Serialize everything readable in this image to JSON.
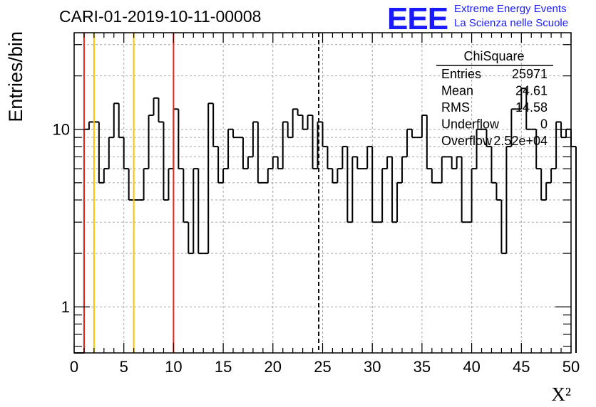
{
  "title": "CARI-01-2019-10-11-00008",
  "logo": {
    "mark": "EEE",
    "line1": "Extreme Energy Events",
    "line2": "La Scienza nelle Scuole",
    "color": "#1a1aff"
  },
  "stats": {
    "name": "ChiSquare",
    "rows": [
      {
        "label": "Entries",
        "value": "25971"
      },
      {
        "label": "Mean",
        "value": "24.61"
      },
      {
        "label": "RMS",
        "value": "14.58"
      },
      {
        "label": "Underflow",
        "value": "0"
      },
      {
        "label": "Overflow",
        "value": "2.52e+04"
      }
    ]
  },
  "chart_data": {
    "type": "histogram",
    "scale_y": "log",
    "xlabel": "X²",
    "ylabel": "Entries/bin",
    "xlim": [
      0,
      50
    ],
    "ylim": [
      0.55,
      35
    ],
    "x_ticks": [
      0,
      5,
      10,
      15,
      20,
      25,
      30,
      35,
      40,
      45,
      50
    ],
    "x_tick_labels": [
      "0",
      "5",
      "10",
      "15",
      "20",
      "25",
      "30",
      "35",
      "40",
      "45",
      "50"
    ],
    "y_tick_labels": [
      {
        "value": 1,
        "label": "1"
      },
      {
        "value": 10,
        "label": "10"
      }
    ],
    "grid": true,
    "bin_width": 0.5,
    "bins_x_start": 0,
    "counts": [
      0,
      0,
      10,
      11,
      11,
      5,
      6,
      9,
      14,
      9,
      6,
      4,
      4,
      4,
      6,
      12,
      15,
      11,
      4,
      6,
      13,
      6,
      3,
      2,
      6,
      2,
      2,
      14,
      8,
      5,
      6,
      10,
      9,
      9,
      6,
      7,
      11,
      5,
      5,
      6,
      7,
      6,
      11,
      9,
      13,
      12,
      10,
      12,
      6,
      11,
      8,
      6,
      5,
      6,
      8,
      3,
      7,
      6,
      6,
      8,
      3,
      3,
      6,
      7,
      3,
      5,
      7,
      10,
      9,
      9,
      12,
      6,
      5,
      5,
      7,
      7,
      6,
      7,
      3,
      3,
      6,
      10,
      10,
      8,
      5,
      4,
      2,
      8,
      13,
      13,
      17,
      10,
      10,
      6,
      4,
      5,
      6,
      11,
      9,
      10,
      8
    ],
    "lines": [
      {
        "x": 1,
        "color": "#e8261f",
        "style": "solid",
        "label": "red"
      },
      {
        "x": 10,
        "color": "#e8261f",
        "style": "solid",
        "label": "red"
      },
      {
        "x": 2,
        "color": "#f5c400",
        "style": "solid",
        "label": "yellow"
      },
      {
        "x": 6,
        "color": "#f5c400",
        "style": "solid",
        "label": "yellow"
      },
      {
        "x": 24.61,
        "color": "#000000",
        "style": "dashed",
        "label": "mean"
      }
    ]
  }
}
